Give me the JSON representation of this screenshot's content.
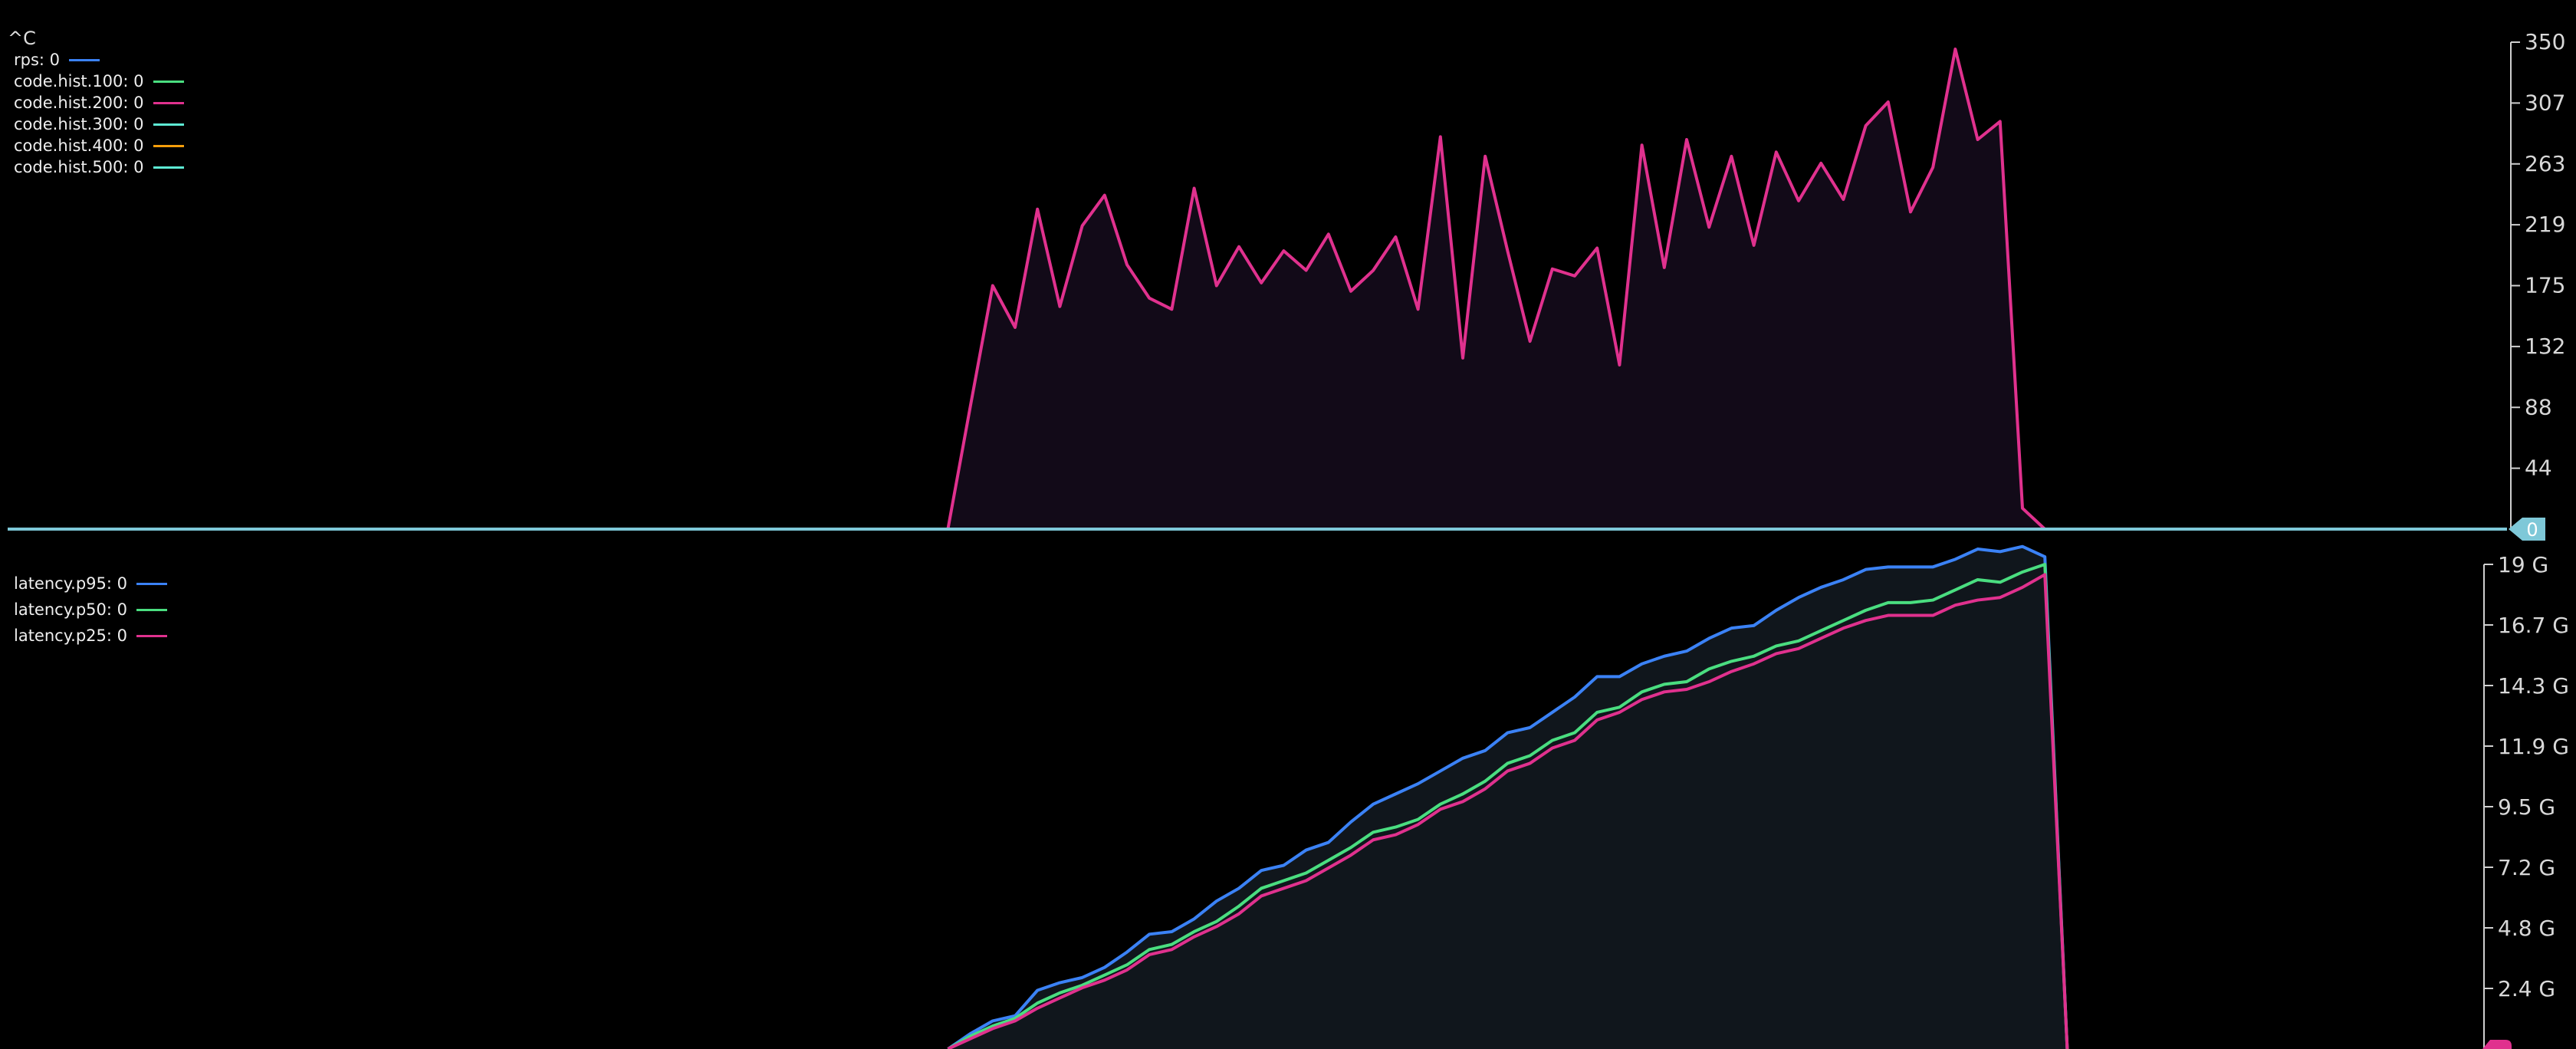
{
  "terminal": {
    "interrupt": "^C"
  },
  "colors": {
    "rps": "#3b82f6",
    "hist100": "#4ade80",
    "hist200": "#e0318e",
    "hist300": "#5eead4",
    "hist400": "#f59e0b",
    "hist500": "#5eead4",
    "p95": "#3b82f6",
    "p50": "#4ade80",
    "p25": "#e0318e",
    "axis": "#cfcfcf",
    "zero_marker": "#7ec8d8",
    "p_marker": "#e0318e"
  },
  "chart_data": [
    {
      "type": "area",
      "legend": [
        {
          "label": "rps: 0",
          "color_key": "rps"
        },
        {
          "label": "code.hist.100: 0",
          "color_key": "hist100"
        },
        {
          "label": "code.hist.200: 0",
          "color_key": "hist200"
        },
        {
          "label": "code.hist.300: 0",
          "color_key": "hist300"
        },
        {
          "label": "code.hist.400: 0",
          "color_key": "hist400"
        },
        {
          "label": "code.hist.500: 0",
          "color_key": "hist500"
        }
      ],
      "y_ticks": [
        "350",
        "307",
        "263",
        "219",
        "175",
        "132",
        "88",
        "44"
      ],
      "ylim": [
        0,
        350
      ],
      "current_marker": "0",
      "series": [
        {
          "legend_index": 2,
          "values": [
            0,
            0,
            0,
            0,
            0,
            0,
            0,
            0,
            0,
            0,
            0,
            0,
            0,
            0,
            0,
            0,
            0,
            0,
            0,
            0,
            0,
            0,
            0,
            0,
            0,
            0,
            0,
            0,
            0,
            0,
            0,
            0,
            0,
            0,
            0,
            0,
            0,
            0,
            0,
            0,
            0,
            0,
            0,
            88,
            175,
            145,
            230,
            160,
            218,
            240,
            190,
            166,
            158,
            245,
            175,
            203,
            177,
            200,
            186,
            212,
            171,
            186,
            210,
            158,
            282,
            123,
            268,
            200,
            135,
            187,
            182,
            202,
            118,
            276,
            188,
            280,
            217,
            268,
            204,
            271,
            236,
            263,
            237,
            290,
            307,
            228,
            260,
            345,
            280,
            293,
            15,
            0,
            0,
            0,
            0,
            0,
            0,
            0,
            0,
            0,
            0
          ]
        }
      ]
    },
    {
      "type": "area",
      "legend": [
        {
          "label": "latency.p95: 0",
          "color_key": "p95"
        },
        {
          "label": "latency.p50: 0",
          "color_key": "p50"
        },
        {
          "label": "latency.p25: 0",
          "color_key": "p25"
        }
      ],
      "y_ticks": [
        "19 G",
        "16.7 G",
        "14.3 G",
        "11.9 G",
        "9.5 G",
        "7.2 G",
        "4.8 G",
        "2.4 G"
      ],
      "ylim": [
        0,
        19
      ],
      "y_unit": "G",
      "start_index": 42,
      "series": [
        {
          "name": "latency.p95",
          "values": [
            0,
            0.6,
            1.1,
            1.3,
            2.3,
            2.6,
            2.8,
            3.2,
            3.8,
            4.5,
            4.6,
            5.1,
            5.8,
            6.3,
            7.0,
            7.2,
            7.8,
            8.1,
            8.9,
            9.6,
            10.0,
            10.4,
            10.9,
            11.4,
            11.7,
            12.4,
            12.6,
            13.2,
            13.8,
            14.6,
            14.6,
            15.1,
            15.4,
            15.6,
            16.1,
            16.5,
            16.6,
            17.2,
            17.7,
            18.1,
            18.4,
            18.8,
            18.9,
            18.9,
            18.9,
            19.2,
            19.6,
            19.5,
            19.7,
            19.3,
            0
          ]
        },
        {
          "name": "latency.p50",
          "values": [
            0,
            0.5,
            0.9,
            1.2,
            1.8,
            2.2,
            2.5,
            2.9,
            3.3,
            3.9,
            4.1,
            4.6,
            5.0,
            5.6,
            6.3,
            6.6,
            6.9,
            7.4,
            7.9,
            8.5,
            8.7,
            9.0,
            9.6,
            10.0,
            10.5,
            11.2,
            11.5,
            12.1,
            12.4,
            13.2,
            13.4,
            14.0,
            14.3,
            14.4,
            14.9,
            15.2,
            15.4,
            15.8,
            16.0,
            16.4,
            16.8,
            17.2,
            17.5,
            17.5,
            17.6,
            18.0,
            18.4,
            18.3,
            18.7,
            19.0,
            0
          ]
        },
        {
          "name": "latency.p25",
          "values": [
            0,
            0.4,
            0.8,
            1.1,
            1.6,
            2.0,
            2.4,
            2.7,
            3.1,
            3.7,
            3.9,
            4.4,
            4.8,
            5.3,
            6.0,
            6.3,
            6.6,
            7.1,
            7.6,
            8.2,
            8.4,
            8.8,
            9.4,
            9.7,
            10.2,
            10.9,
            11.2,
            11.8,
            12.1,
            12.9,
            13.2,
            13.7,
            14.0,
            14.1,
            14.4,
            14.8,
            15.1,
            15.5,
            15.7,
            16.1,
            16.5,
            16.8,
            17.0,
            17.0,
            17.0,
            17.4,
            17.6,
            17.7,
            18.1,
            18.6,
            0
          ]
        }
      ]
    }
  ]
}
